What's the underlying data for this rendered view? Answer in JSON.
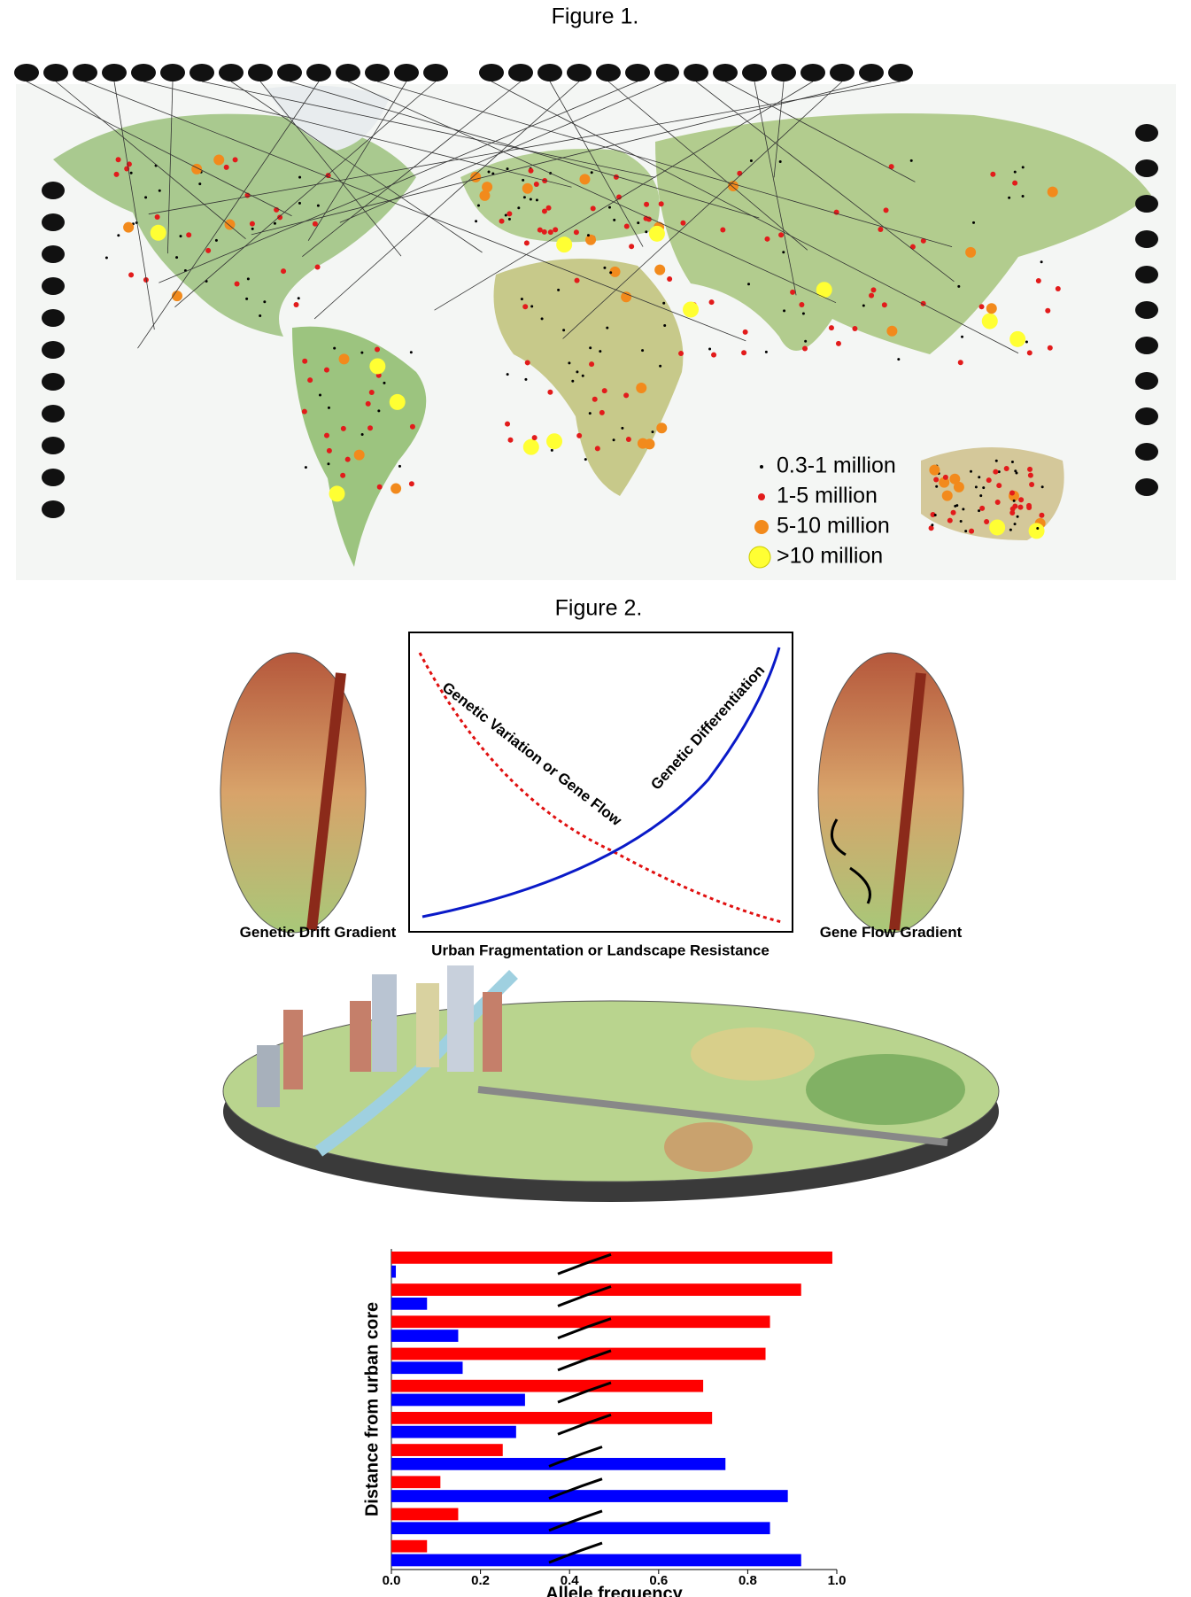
{
  "figure1": {
    "title": "Figure 1.",
    "legend": [
      "0.3-1 million",
      "1-5 million",
      "5-10 million",
      ">10 million"
    ]
  },
  "figure2": {
    "title": "Figure 2.",
    "left_label": "Genetic Drift Gradient",
    "right_label": "Gene Flow Gradient",
    "curves": {
      "red_label": "Genetic Variation or Gene Flow",
      "blue_label": "Genetic Differentiation",
      "x_label": "Urban Fragmentation or Landscape Resistance"
    }
  },
  "chart_data": {
    "type": "bar",
    "orientation": "horizontal",
    "x_label": "Allele frequency",
    "y_label": "Distance from urban core",
    "categories": [
      null,
      null,
      null,
      null,
      null,
      null,
      null,
      null,
      null,
      null
    ],
    "series": [
      {
        "color": "#ff0000",
        "values": [
          0.99,
          0.92,
          0.85,
          0.84,
          0.7,
          0.72,
          0.25,
          0.11,
          0.15,
          0.08
        ]
      },
      {
        "color": "#0000ff",
        "values": [
          0.01,
          0.08,
          0.15,
          0.16,
          0.3,
          0.28,
          0.75,
          0.89,
          0.85,
          0.92
        ]
      }
    ],
    "xlim": [
      0,
      1
    ],
    "xticks": [
      {
        "value": 0,
        "label": "0.0"
      },
      0.2,
      0.4,
      0.6,
      0.8,
      {
        "value": 1,
        "label": "1.0"
      }
    ]
  }
}
